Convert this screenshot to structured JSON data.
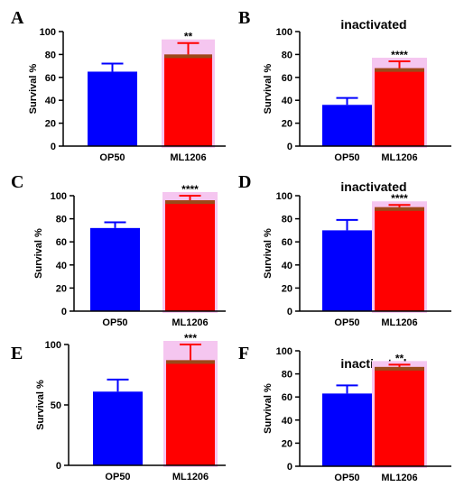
{
  "colors": {
    "op50": "#0000ff",
    "ml1206": "#ff0000",
    "highlight": "#f5c6f0",
    "band": "#9a4a1a"
  },
  "chart_data": [
    {
      "letter": "A",
      "type": "bar",
      "title": "",
      "ylabel": "Survival %",
      "categories": [
        "OP50",
        "ML1206"
      ],
      "values": [
        65,
        80
      ],
      "errors": [
        7,
        10
      ],
      "ylim": [
        0,
        100
      ],
      "yticks": [
        0,
        20,
        40,
        60,
        80,
        100
      ],
      "significance": "**"
    },
    {
      "letter": "B",
      "type": "bar",
      "title": "inactivated",
      "ylabel": "Survival %",
      "categories": [
        "OP50",
        "ML1206"
      ],
      "values": [
        36,
        68
      ],
      "errors": [
        6,
        6
      ],
      "ylim": [
        0,
        100
      ],
      "yticks": [
        0,
        20,
        40,
        60,
        80,
        100
      ],
      "significance": "****"
    },
    {
      "letter": "C",
      "type": "bar",
      "title": "",
      "ylabel": "Survival  %",
      "categories": [
        "OP50",
        "ML1206"
      ],
      "values": [
        72,
        96
      ],
      "errors": [
        5,
        4
      ],
      "ylim": [
        0,
        100
      ],
      "yticks": [
        0,
        20,
        40,
        60,
        80,
        100
      ],
      "significance": "****"
    },
    {
      "letter": "D",
      "type": "bar",
      "title": "inactivated",
      "ylabel": "Survival %",
      "categories": [
        "OP50",
        "ML1206"
      ],
      "values": [
        70,
        90
      ],
      "errors": [
        9,
        2
      ],
      "ylim": [
        0,
        100
      ],
      "yticks": [
        0,
        20,
        40,
        60,
        80,
        100
      ],
      "significance": "****"
    },
    {
      "letter": "E",
      "type": "bar",
      "title": "",
      "ylabel": "Survival %",
      "categories": [
        "OP50",
        "ML1206"
      ],
      "values": [
        61,
        87
      ],
      "errors": [
        10,
        13
      ],
      "ylim": [
        0,
        100
      ],
      "yticks": [
        0,
        50,
        100
      ],
      "significance": "***"
    },
    {
      "letter": "F",
      "type": "bar",
      "title": "inactivated",
      "ylabel": "Survival %",
      "categories": [
        "OP50",
        "ML1206"
      ],
      "values": [
        63,
        86
      ],
      "errors": [
        7,
        2
      ],
      "ylim": [
        0,
        100
      ],
      "yticks": [
        0,
        20,
        40,
        60,
        80,
        100
      ],
      "significance": "**"
    }
  ]
}
